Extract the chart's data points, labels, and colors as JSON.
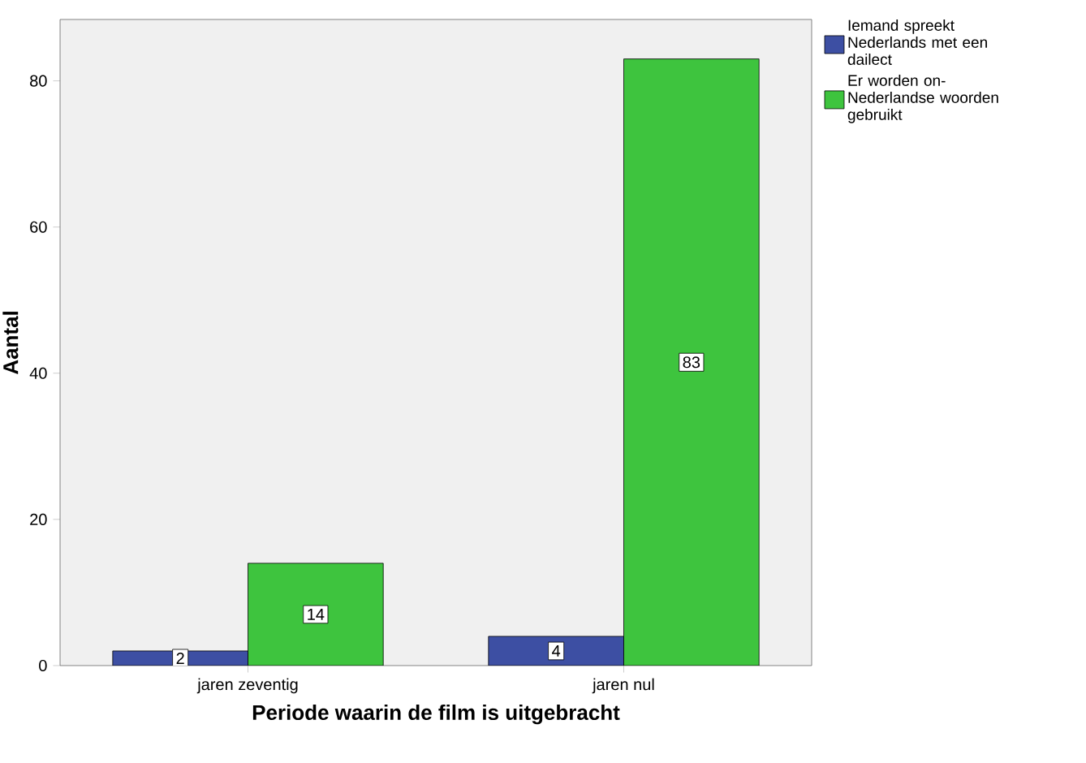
{
  "chart_data": {
    "type": "bar",
    "xlabel": "Periode waarin de film is uitgebracht",
    "ylabel": "Aantal",
    "categories": [
      "jaren zeventig",
      "jaren nul"
    ],
    "series": [
      {
        "name": "Iemand spreekt Nederlands met een dailect",
        "color": "#3d4fa3",
        "values": [
          2,
          4
        ]
      },
      {
        "name": "Er worden on-Nederlandse woorden gebruikt",
        "color": "#3ec43e",
        "values": [
          14,
          83
        ]
      }
    ],
    "ylim": [
      0,
      88.4
    ],
    "yticks": [
      0,
      20,
      40,
      60,
      80
    ],
    "data_labels": true,
    "legend": "top right",
    "grid": false
  }
}
